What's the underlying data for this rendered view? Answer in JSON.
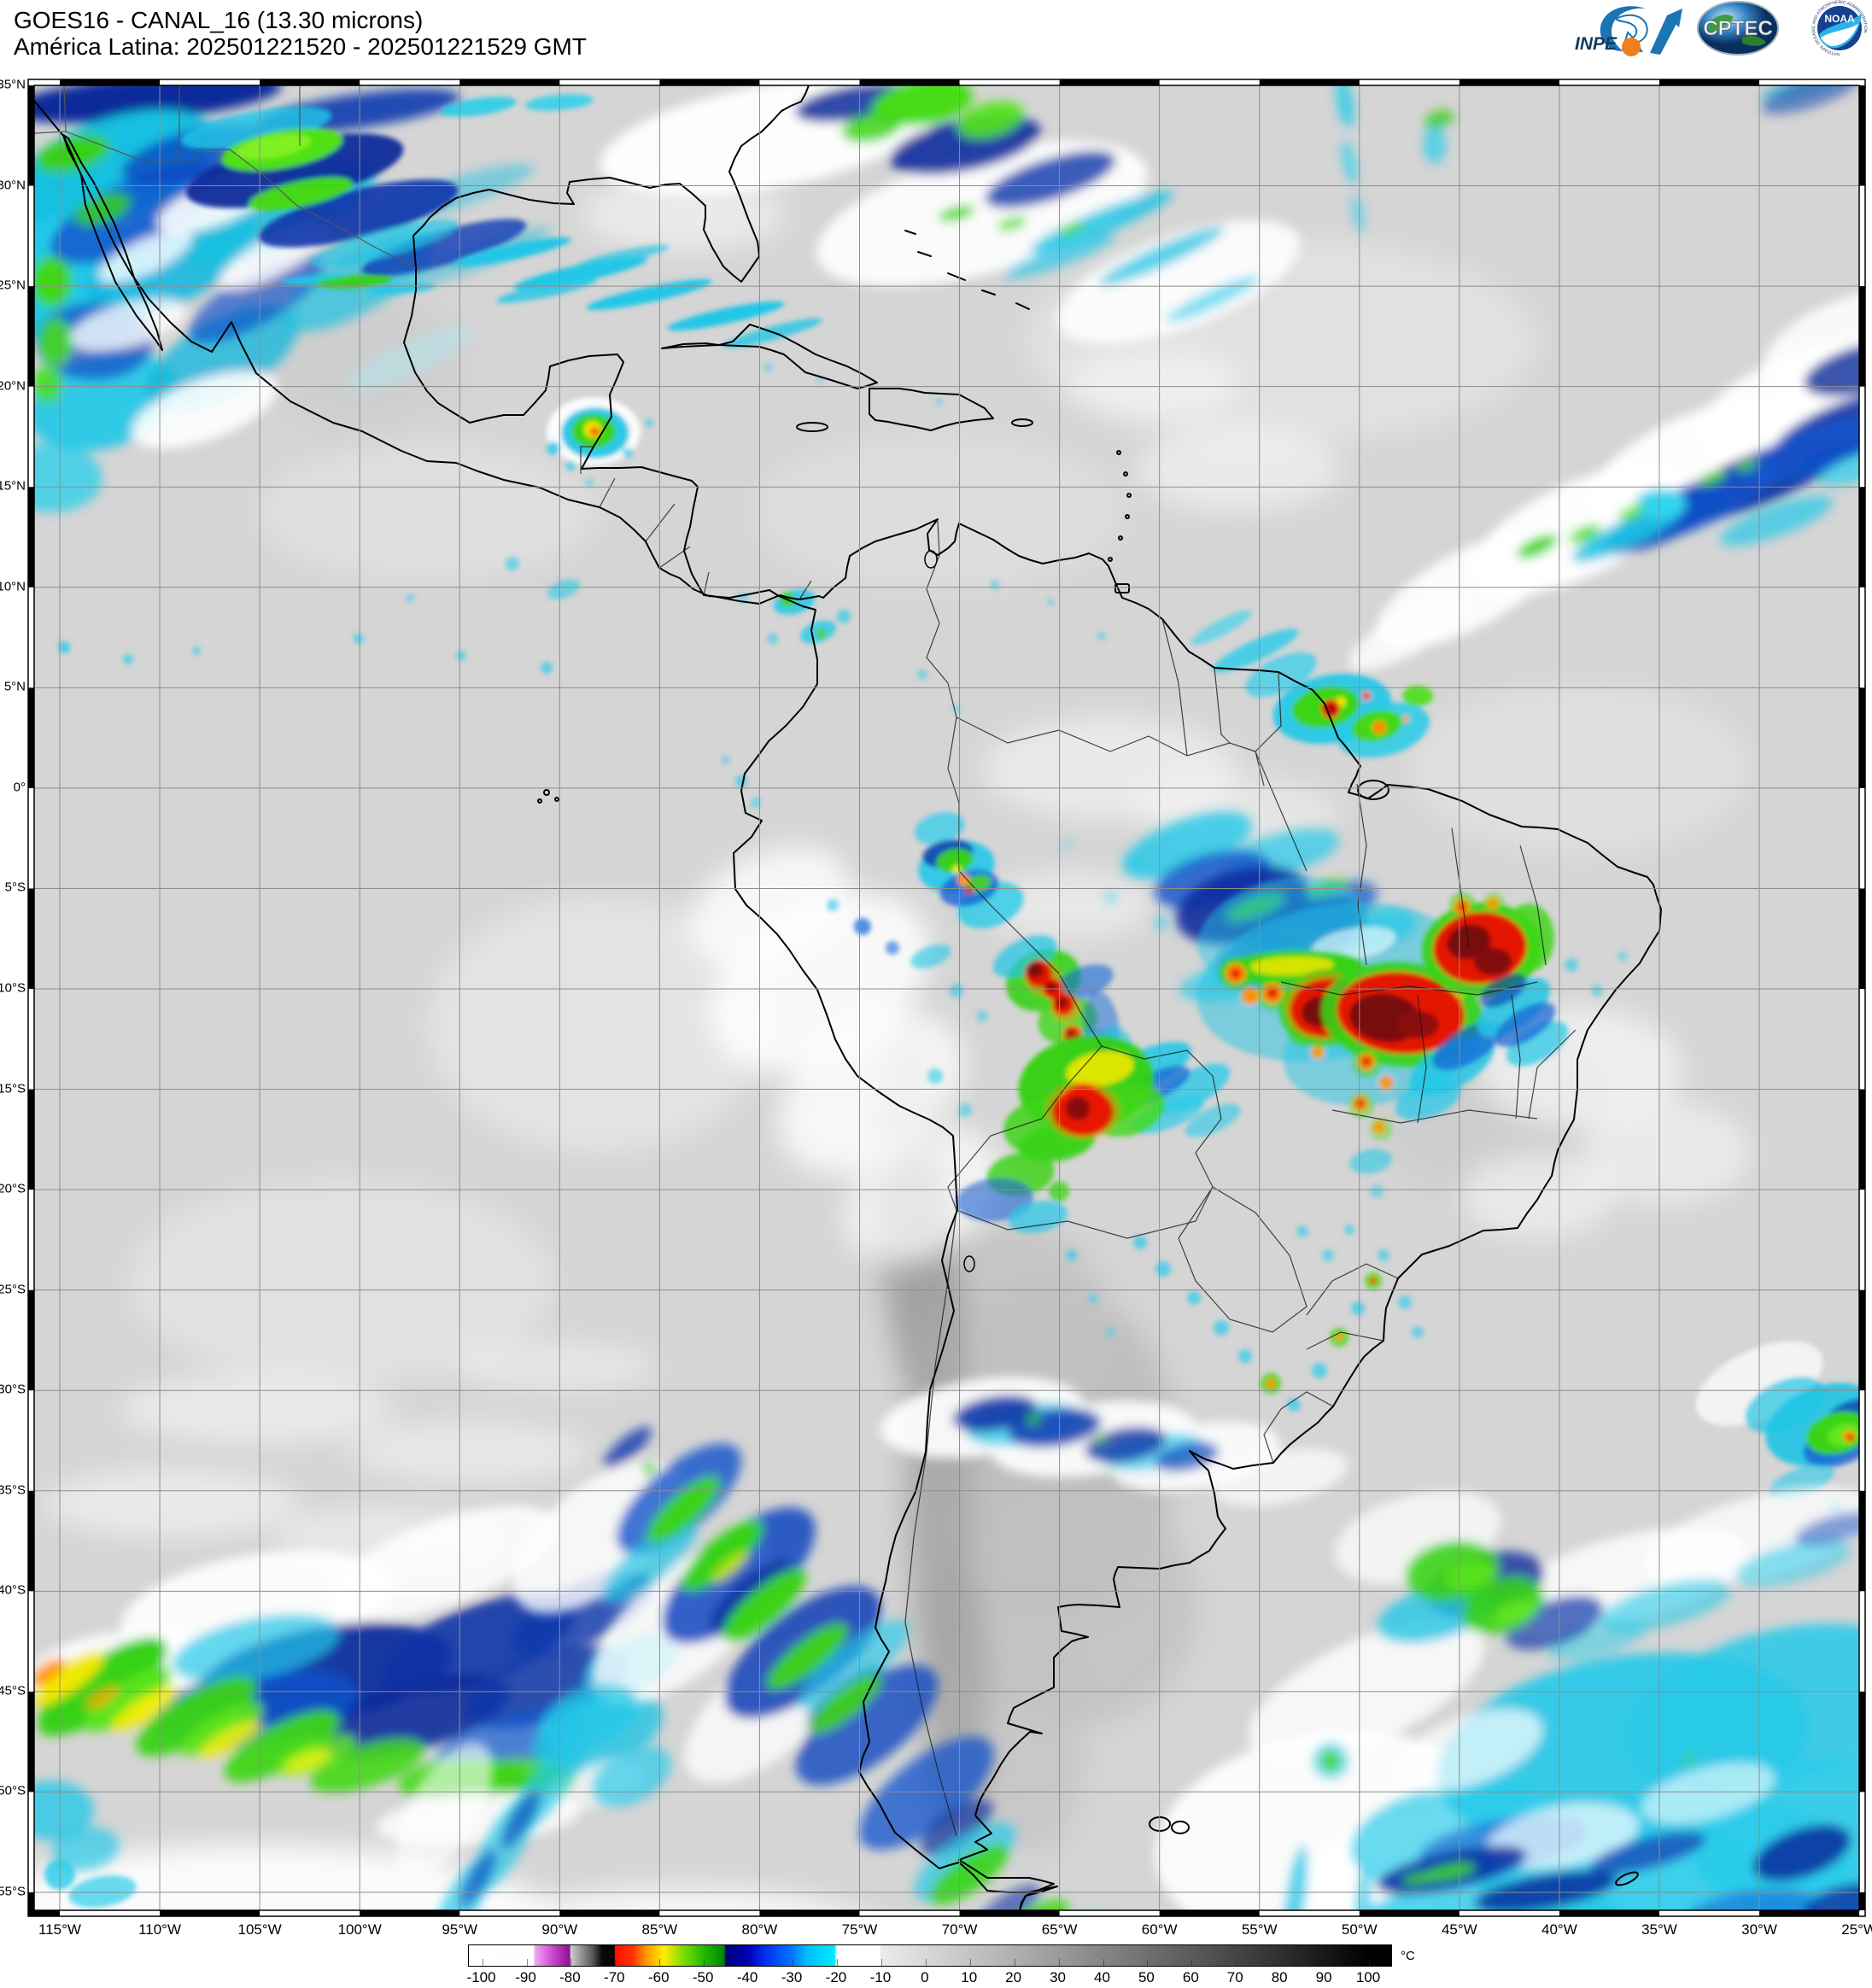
{
  "header": {
    "title_line1": "GOES16 - CANAL_16 (13.30 microns)",
    "title_line2": "América Latina: 202501221520 - 202501221529 GMT"
  },
  "logos": {
    "inpe_label": "INPE",
    "cptec_label": "CPTEC",
    "noaa_label": "NOAA",
    "noaa_ring_text": "NATIONAL OCEANIC AND ATMOSPHERIC ADMINISTRATION"
  },
  "map": {
    "lat_labels": [
      "35°N",
      "30°N",
      "25°N",
      "20°N",
      "15°N",
      "10°N",
      "5°N",
      "0°",
      "5°S",
      "10°S",
      "15°S",
      "20°S",
      "25°S",
      "30°S",
      "35°S",
      "40°S",
      "45°S",
      "50°S",
      "55°S"
    ],
    "lon_labels": [
      "115°W",
      "110°W",
      "105°W",
      "100°W",
      "95°W",
      "90°W",
      "85°W",
      "80°W",
      "75°W",
      "70°W",
      "65°W",
      "60°W",
      "55°W",
      "50°W",
      "45°W",
      "40°W",
      "35°W",
      "30°W",
      "25°W"
    ]
  },
  "colorbar": {
    "unit": "°C",
    "domain": [
      -103,
      105
    ],
    "tick_values": [
      -100,
      -90,
      -80,
      -70,
      -60,
      -50,
      -40,
      -30,
      -20,
      -10,
      0,
      10,
      20,
      30,
      40,
      50,
      60,
      70,
      80,
      90,
      100
    ],
    "stops": [
      {
        "v": -103,
        "c": "#ffffff"
      },
      {
        "v": -88.5,
        "c": "#fefefe"
      },
      {
        "v": -88,
        "c": "#f2a4f2"
      },
      {
        "v": -84,
        "c": "#cc44cc"
      },
      {
        "v": -80.3,
        "c": "#8d0f96"
      },
      {
        "v": -80,
        "c": "#cccccc"
      },
      {
        "v": -75,
        "c": "#555555"
      },
      {
        "v": -73,
        "c": "#0a0a0a"
      },
      {
        "v": -70.2,
        "c": "#000000"
      },
      {
        "v": -70,
        "c": "#ff0f00"
      },
      {
        "v": -66,
        "c": "#ff3300"
      },
      {
        "v": -63,
        "c": "#ff9900"
      },
      {
        "v": -59,
        "c": "#ffee00"
      },
      {
        "v": -55,
        "c": "#88dd00"
      },
      {
        "v": -50,
        "c": "#22bb00"
      },
      {
        "v": -45.5,
        "c": "#008800"
      },
      {
        "v": -45,
        "c": "#000077"
      },
      {
        "v": -40,
        "c": "#0000bb"
      },
      {
        "v": -36,
        "c": "#0033ee"
      },
      {
        "v": -30,
        "c": "#0077ff"
      },
      {
        "v": -27,
        "c": "#00bbff"
      },
      {
        "v": -20.5,
        "c": "#00eeff"
      },
      {
        "v": -20,
        "c": "#ffffff"
      },
      {
        "v": -10.5,
        "c": "#ffffff"
      },
      {
        "v": -10,
        "c": "#ececec"
      },
      {
        "v": 20,
        "c": "#b0b0b0"
      },
      {
        "v": 50,
        "c": "#707070"
      },
      {
        "v": 80,
        "c": "#303030"
      },
      {
        "v": 100,
        "c": "#000000"
      }
    ]
  }
}
